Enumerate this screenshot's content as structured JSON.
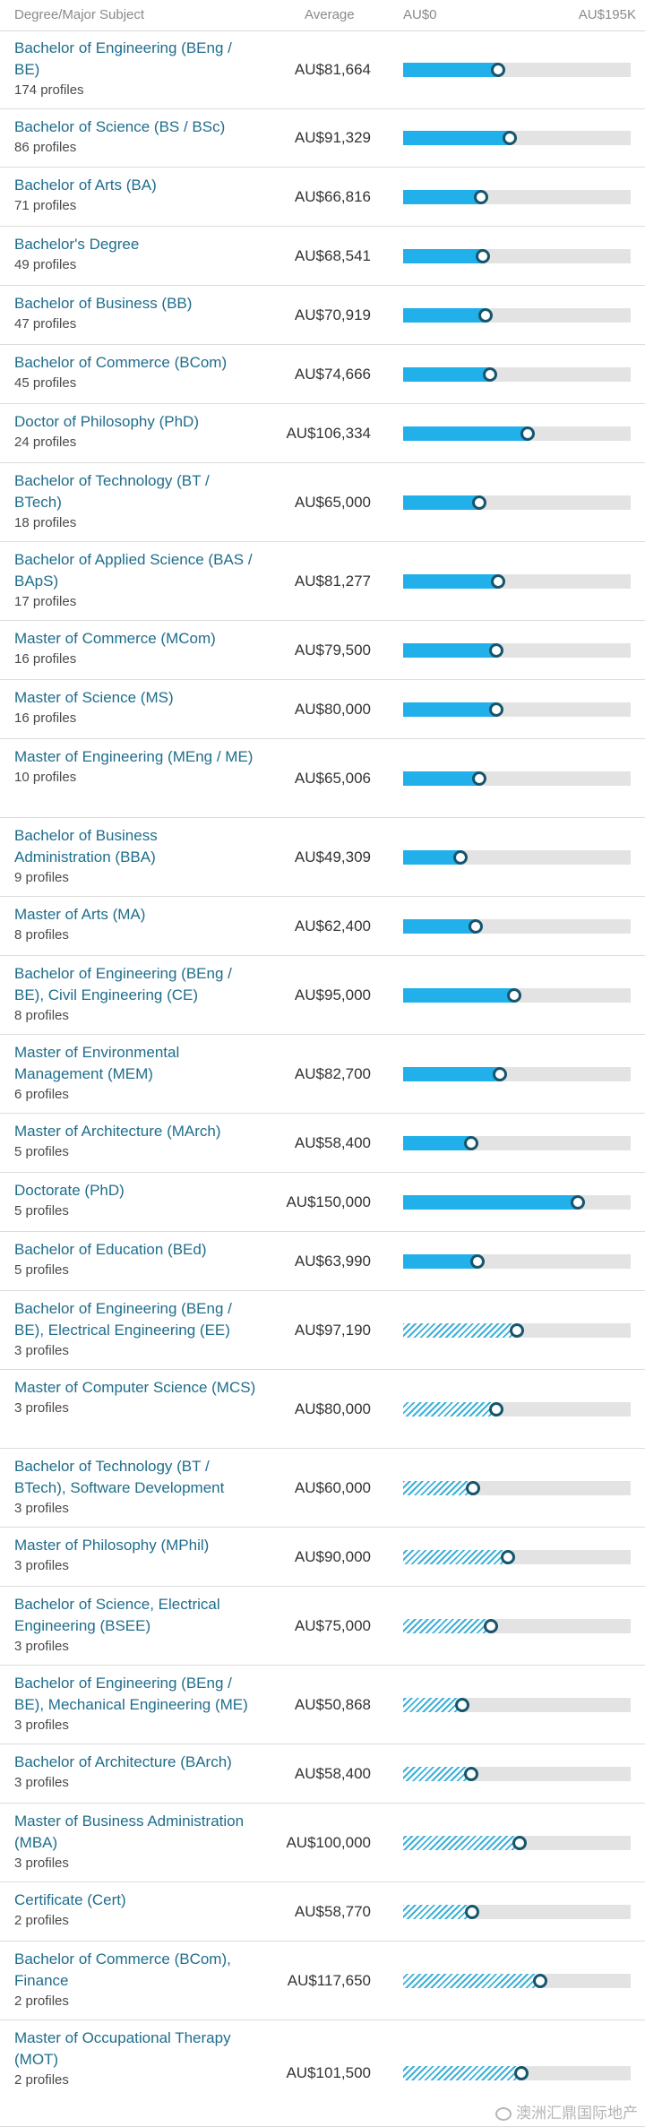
{
  "header": {
    "degree_label": "Degree/Major Subject",
    "average_label": "Average",
    "min_label": "AU$0",
    "max_label": "AU$195K"
  },
  "scale_max": 195000,
  "colors": {
    "bar": "#22b0ea",
    "knob": "#16566d",
    "link": "#1f6d8c"
  },
  "rows": [
    {
      "title": "Bachelor of Engineering (BEng / BE)",
      "profiles": "174 profiles",
      "average": "AU$81,664",
      "value": 81664,
      "hatched": false
    },
    {
      "title": "Bachelor of Science (BS / BSc)",
      "profiles": "86 profiles",
      "average": "AU$91,329",
      "value": 91329,
      "hatched": false
    },
    {
      "title": "Bachelor of Arts (BA)",
      "profiles": "71 profiles",
      "average": "AU$66,816",
      "value": 66816,
      "hatched": false
    },
    {
      "title": "Bachelor's Degree",
      "profiles": "49 profiles",
      "average": "AU$68,541",
      "value": 68541,
      "hatched": false
    },
    {
      "title": "Bachelor of Business (BB)",
      "profiles": "47 profiles",
      "average": "AU$70,919",
      "value": 70919,
      "hatched": false
    },
    {
      "title": "Bachelor of Commerce (BCom)",
      "profiles": "45 profiles",
      "average": "AU$74,666",
      "value": 74666,
      "hatched": false
    },
    {
      "title": "Doctor of Philosophy (PhD)",
      "profiles": "24 profiles",
      "average": "AU$106,334",
      "value": 106334,
      "hatched": false
    },
    {
      "title": "Bachelor of Technology (BT / BTech)",
      "profiles": "18 profiles",
      "average": "AU$65,000",
      "value": 65000,
      "hatched": false
    },
    {
      "title": "Bachelor of Applied Science (BAS / BApS)",
      "profiles": "17 profiles",
      "average": "AU$81,277",
      "value": 81277,
      "hatched": false
    },
    {
      "title": "Master of Commerce (MCom)",
      "profiles": "16 profiles",
      "average": "AU$79,500",
      "value": 79500,
      "hatched": false
    },
    {
      "title": "Master of Science (MS)",
      "profiles": "16 profiles",
      "average": "AU$80,000",
      "value": 80000,
      "hatched": false
    },
    {
      "title": "Master of Engineering (MEng / ME)",
      "profiles": "10 profiles",
      "average": "AU$65,006",
      "value": 65006,
      "hatched": false
    },
    {
      "title": "Bachelor of Business Administration (BBA)",
      "profiles": "9 profiles",
      "average": "AU$49,309",
      "value": 49309,
      "hatched": false
    },
    {
      "title": "Master of Arts (MA)",
      "profiles": "8 profiles",
      "average": "AU$62,400",
      "value": 62400,
      "hatched": false
    },
    {
      "title": "Bachelor of Engineering (BEng / BE), Civil Engineering (CE)",
      "profiles": "8 profiles",
      "average": "AU$95,000",
      "value": 95000,
      "hatched": false
    },
    {
      "title": "Master of Environmental Management (MEM)",
      "profiles": "6 profiles",
      "average": "AU$82,700",
      "value": 82700,
      "hatched": false
    },
    {
      "title": "Master of Architecture (MArch)",
      "profiles": "5 profiles",
      "average": "AU$58,400",
      "value": 58400,
      "hatched": false
    },
    {
      "title": "Doctorate (PhD)",
      "profiles": "5 profiles",
      "average": "AU$150,000",
      "value": 150000,
      "hatched": false
    },
    {
      "title": "Bachelor of Education (BEd)",
      "profiles": "5 profiles",
      "average": "AU$63,990",
      "value": 63990,
      "hatched": false
    },
    {
      "title": "Bachelor of Engineering (BEng / BE), Electrical Engineering (EE)",
      "profiles": "3 profiles",
      "average": "AU$97,190",
      "value": 97190,
      "hatched": true
    },
    {
      "title": "Master of Computer Science (MCS)",
      "profiles": "3 profiles",
      "average": "AU$80,000",
      "value": 80000,
      "hatched": true
    },
    {
      "title": "Bachelor of Technology (BT / BTech), Software Development",
      "profiles": "3 profiles",
      "average": "AU$60,000",
      "value": 60000,
      "hatched": true
    },
    {
      "title": "Master of Philosophy (MPhil)",
      "profiles": "3 profiles",
      "average": "AU$90,000",
      "value": 90000,
      "hatched": true
    },
    {
      "title": "Bachelor of Science, Electrical Engineering (BSEE)",
      "profiles": "3 profiles",
      "average": "AU$75,000",
      "value": 75000,
      "hatched": true
    },
    {
      "title": "Bachelor of Engineering (BEng / BE), Mechanical Engineering (ME)",
      "profiles": "3 profiles",
      "average": "AU$50,868",
      "value": 50868,
      "hatched": true
    },
    {
      "title": "Bachelor of Architecture (BArch)",
      "profiles": "3 profiles",
      "average": "AU$58,400",
      "value": 58400,
      "hatched": true
    },
    {
      "title": "Master of Business Administration (MBA)",
      "profiles": "3 profiles",
      "average": "AU$100,000",
      "value": 100000,
      "hatched": true
    },
    {
      "title": "Certificate (Cert)",
      "profiles": "2 profiles",
      "average": "AU$58,770",
      "value": 58770,
      "hatched": true
    },
    {
      "title": "Bachelor of Commerce (BCom), Finance",
      "profiles": "2 profiles",
      "average": "AU$117,650",
      "value": 117650,
      "hatched": true
    },
    {
      "title": "Master of Occupational Therapy (MOT)",
      "profiles": "2 profiles",
      "average": "AU$101,500",
      "value": 101500,
      "hatched": true
    }
  ],
  "watermark": "澳洲汇鼎国际地产"
}
